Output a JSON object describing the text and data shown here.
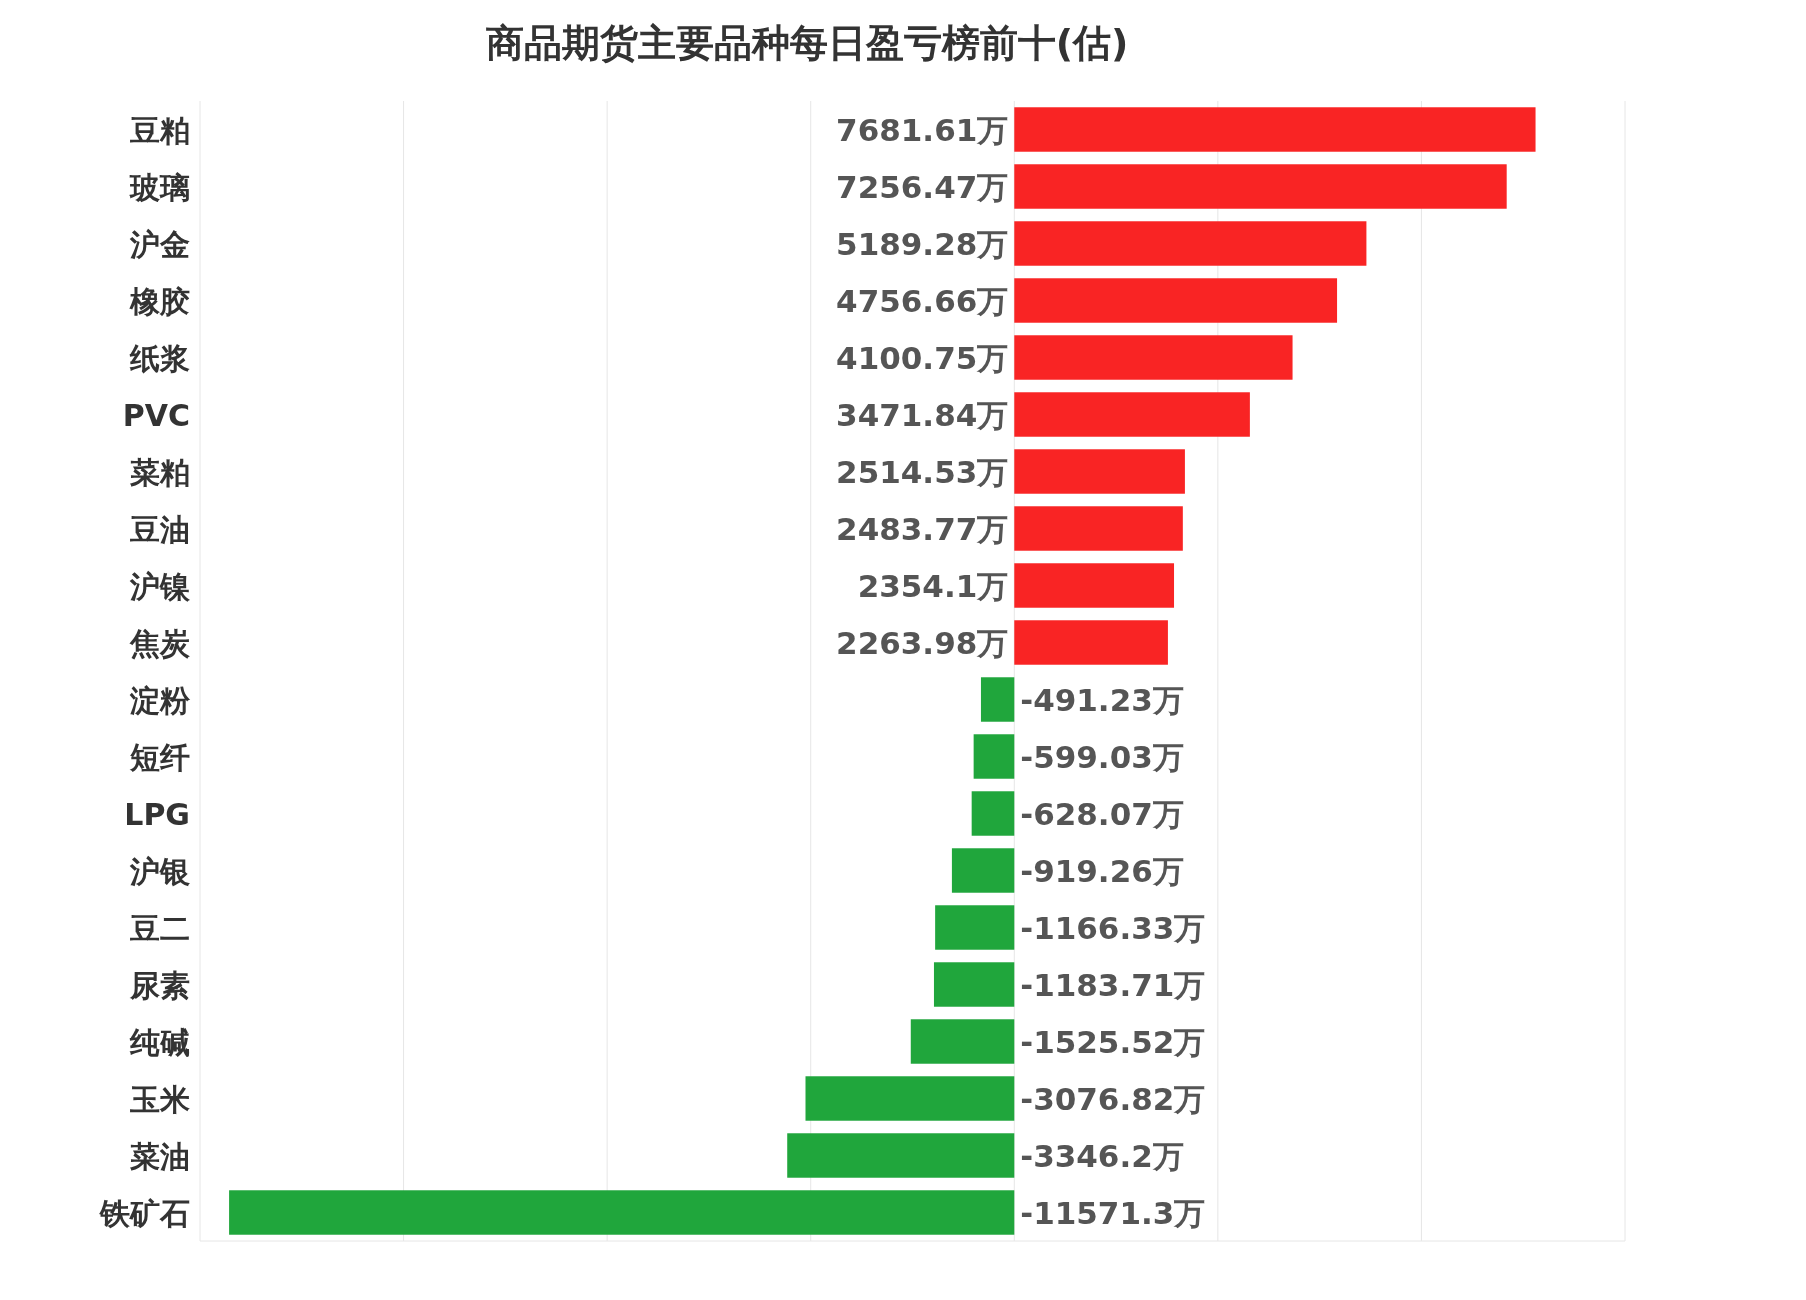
{
  "chart_data": {
    "type": "bar",
    "orientation": "horizontal",
    "title": "商品期货主要品种每日盈亏榜前十(估)",
    "categories": [
      "豆粕",
      "玻璃",
      "沪金",
      "橡胶",
      "纸浆",
      "PVC",
      "菜粕",
      "豆油",
      "沪镍",
      "焦炭",
      "淀粉",
      "短纤",
      "LPG",
      "沪银",
      "豆二",
      "尿素",
      "纯碱",
      "玉米",
      "菜油",
      "铁矿石"
    ],
    "values": [
      7681.61,
      7256.47,
      5189.28,
      4756.66,
      4100.75,
      3471.84,
      2514.53,
      2483.77,
      2354.1,
      2263.98,
      -491.23,
      -599.03,
      -628.07,
      -919.26,
      -1166.33,
      -1183.71,
      -1525.52,
      -3076.82,
      -3346.2,
      -11571.3
    ],
    "colors": [
      "#f92424",
      "#f92424",
      "#f92424",
      "#f92424",
      "#f92424",
      "#f92424",
      "#f92424",
      "#f92424",
      "#f92424",
      "#f92424",
      "#20a63c",
      "#20a63c",
      "#20a63c",
      "#20a63c",
      "#20a63c",
      "#20a63c",
      "#20a63c",
      "#20a63c",
      "#20a63c",
      "#20a63c"
    ],
    "value_labels": [
      "7681.61万",
      "7256.47万",
      "5189.28万",
      "4756.66万",
      "4100.75万",
      "3471.84万",
      "2514.53万",
      "2483.77万",
      "2354.1万",
      "2263.98万",
      "-491.23万",
      "-599.03万",
      "-628.07万",
      "-919.26万",
      "-1166.33万",
      "-1183.71万",
      "-1525.52万",
      "-3076.82万",
      "-3346.2万",
      "-11571.3万"
    ],
    "xlim": [
      -12000,
      9000
    ],
    "xticks": [
      {
        "value": -12000,
        "label": null
      },
      {
        "value": -9000,
        "label": null
      },
      {
        "value": -6000,
        "label": null
      },
      {
        "value": -3000,
        "label": null
      },
      {
        "value": 0,
        "label": null
      },
      {
        "value": 3000,
        "label": null
      },
      {
        "value": 6000,
        "label": null
      },
      {
        "value": 9000,
        "label": null
      }
    ],
    "grid": "x",
    "tick_labels": "y"
  }
}
